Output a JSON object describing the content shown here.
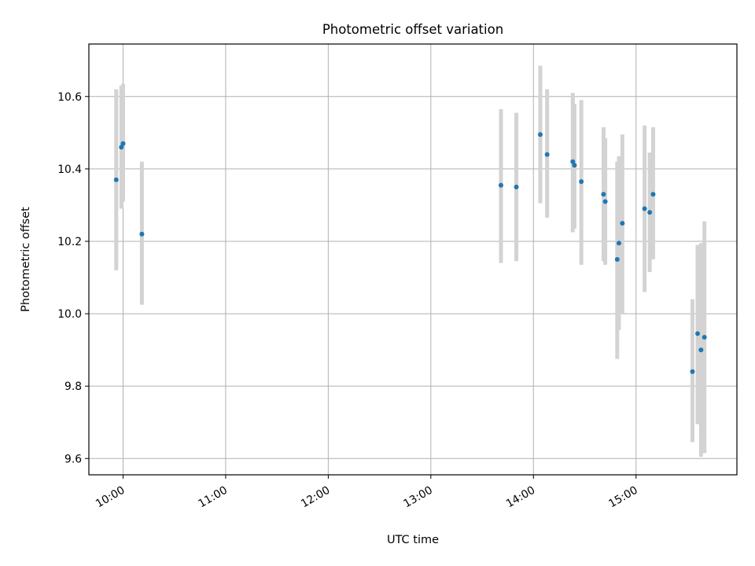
{
  "chart_data": {
    "type": "scatter",
    "title": "Photometric offset variation",
    "xlabel": "UTC time",
    "ylabel": "Photometric offset",
    "xlim": [
      "09:40",
      "15:59"
    ],
    "ylim": [
      9.555,
      10.745
    ],
    "xticks": [
      "10:00",
      "11:00",
      "12:00",
      "13:00",
      "14:00",
      "15:00"
    ],
    "yticks": [
      "9.6",
      "9.8",
      "10.0",
      "10.2",
      "10.4",
      "10.6"
    ],
    "grid": true,
    "point_color": "#1f77b4",
    "errorbar_color": "#d3d3d3",
    "points": [
      {
        "x": "09:56",
        "y": 10.37,
        "lo": 10.12,
        "hi": 10.62
      },
      {
        "x": "09:59",
        "y": 10.46,
        "lo": 10.29,
        "hi": 10.63
      },
      {
        "x": "10:00",
        "y": 10.47,
        "lo": 10.31,
        "hi": 10.635
      },
      {
        "x": "10:11",
        "y": 10.22,
        "lo": 10.025,
        "hi": 10.42
      },
      {
        "x": "13:41",
        "y": 10.355,
        "lo": 10.14,
        "hi": 10.565
      },
      {
        "x": "13:50",
        "y": 10.35,
        "lo": 10.145,
        "hi": 10.555
      },
      {
        "x": "14:04",
        "y": 10.495,
        "lo": 10.305,
        "hi": 10.685
      },
      {
        "x": "14:08",
        "y": 10.44,
        "lo": 10.265,
        "hi": 10.62
      },
      {
        "x": "14:23",
        "y": 10.42,
        "lo": 10.225,
        "hi": 10.61
      },
      {
        "x": "14:24",
        "y": 10.41,
        "lo": 10.235,
        "hi": 10.58
      },
      {
        "x": "14:28",
        "y": 10.365,
        "lo": 10.135,
        "hi": 10.59
      },
      {
        "x": "14:41",
        "y": 10.33,
        "lo": 10.145,
        "hi": 10.515
      },
      {
        "x": "14:42",
        "y": 10.31,
        "lo": 10.135,
        "hi": 10.485
      },
      {
        "x": "14:49",
        "y": 10.15,
        "lo": 9.875,
        "hi": 10.42
      },
      {
        "x": "14:50",
        "y": 10.195,
        "lo": 9.955,
        "hi": 10.435
      },
      {
        "x": "14:52",
        "y": 10.25,
        "lo": 10.0,
        "hi": 10.495
      },
      {
        "x": "15:05",
        "y": 10.29,
        "lo": 10.06,
        "hi": 10.52
      },
      {
        "x": "15:08",
        "y": 10.28,
        "lo": 10.115,
        "hi": 10.445
      },
      {
        "x": "15:10",
        "y": 10.33,
        "lo": 10.15,
        "hi": 10.515
      },
      {
        "x": "15:33",
        "y": 9.84,
        "lo": 9.645,
        "hi": 10.04
      },
      {
        "x": "15:36",
        "y": 9.945,
        "lo": 9.695,
        "hi": 10.19
      },
      {
        "x": "15:38",
        "y": 9.9,
        "lo": 9.605,
        "hi": 10.195
      },
      {
        "x": "15:40",
        "y": 9.935,
        "lo": 9.615,
        "hi": 10.255
      }
    ]
  }
}
